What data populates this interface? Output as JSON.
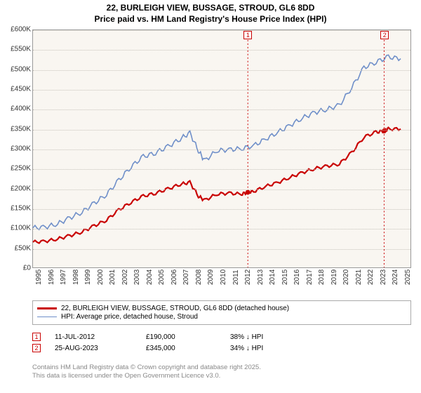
{
  "title_line1": "22, BURLEIGH VIEW, BUSSAGE, STROUD, GL6 8DD",
  "title_line2": "Price paid vs. HM Land Registry's House Price Index (HPI)",
  "chart": {
    "type": "line",
    "background_color": "#f9f6f1",
    "grid_color": "#c8c4bc",
    "xlim": [
      1995,
      2025.8
    ],
    "ylim": [
      0,
      600000
    ],
    "ytick_step": 50000,
    "yticks": [
      "£0",
      "£50K",
      "£100K",
      "£150K",
      "£200K",
      "£250K",
      "£300K",
      "£350K",
      "£400K",
      "£450K",
      "£500K",
      "£550K",
      "£600K"
    ],
    "xticks": [
      "1995",
      "1996",
      "1997",
      "1998",
      "1999",
      "2000",
      "2001",
      "2002",
      "2003",
      "2004",
      "2005",
      "2006",
      "2007",
      "2008",
      "2009",
      "2010",
      "2011",
      "2012",
      "2013",
      "2014",
      "2015",
      "2016",
      "2017",
      "2018",
      "2019",
      "2020",
      "2021",
      "2022",
      "2023",
      "2024",
      "2025"
    ],
    "series": [
      {
        "name": "price_paid",
        "color": "#c90000",
        "width": 2.2,
        "x": [
          1995,
          1996,
          1997,
          1998,
          1999,
          2000,
          2001,
          2002,
          2003,
          2004,
          2005,
          2006,
          2007,
          2007.8,
          2008.5,
          2009,
          2010,
          2011,
          2012,
          2012.5,
          2013,
          2014,
          2015,
          2016,
          2017,
          2018,
          2019,
          2020,
          2021,
          2022,
          2023,
          2023.65,
          2024,
          2025
        ],
        "y": [
          64000,
          66000,
          72000,
          80000,
          90000,
          105000,
          120000,
          145000,
          165000,
          180000,
          188000,
          198000,
          210000,
          215000,
          180000,
          170000,
          185000,
          188000,
          185000,
          190000,
          192000,
          205000,
          215000,
          228000,
          240000,
          250000,
          256000,
          262000,
          290000,
          330000,
          342000,
          345000,
          350000,
          350000
        ]
      },
      {
        "name": "hpi",
        "color": "#6f8fc9",
        "width": 1.6,
        "x": [
          1995,
          1996,
          1997,
          1998,
          1999,
          2000,
          2001,
          2002,
          2003,
          2004,
          2005,
          2006,
          2007,
          2007.8,
          2008.5,
          2009,
          2010,
          2011,
          2012,
          2013,
          2014,
          2015,
          2016,
          2017,
          2018,
          2019,
          2020,
          2021,
          2022,
          2023,
          2024,
          2025
        ],
        "y": [
          100000,
          102000,
          110000,
          125000,
          140000,
          162000,
          185000,
          220000,
          255000,
          280000,
          290000,
          305000,
          325000,
          340000,
          295000,
          270000,
          295000,
          298000,
          300000,
          308000,
          325000,
          342000,
          360000,
          378000,
          392000,
          400000,
          410000,
          455000,
          505000,
          520000,
          532000,
          528000
        ]
      }
    ],
    "markers": [
      {
        "label": "1",
        "x": 2012.53,
        "y_top": true
      },
      {
        "label": "2",
        "x": 2023.65,
        "y_top": true
      }
    ],
    "marker_lines": [
      {
        "x": 2012.53,
        "color": "#c90000"
      },
      {
        "x": 2023.65,
        "color": "#c90000"
      }
    ],
    "sale_points": [
      {
        "x": 2012.53,
        "y": 190000,
        "color": "#c90000"
      },
      {
        "x": 2023.65,
        "y": 345000,
        "color": "#c90000"
      }
    ]
  },
  "legend": [
    {
      "color": "#c90000",
      "width": 2.2,
      "label": "22, BURLEIGH VIEW, BUSSAGE, STROUD, GL6 8DD (detached house)"
    },
    {
      "color": "#6f8fc9",
      "width": 1.6,
      "label": "HPI: Average price, detached house, Stroud"
    }
  ],
  "events": [
    {
      "num": "1",
      "date": "11-JUL-2012",
      "price": "£190,000",
      "delta": "38% ↓ HPI"
    },
    {
      "num": "2",
      "date": "25-AUG-2023",
      "price": "£345,000",
      "delta": "34% ↓ HPI"
    }
  ],
  "footer_line1": "Contains HM Land Registry data © Crown copyright and database right 2025.",
  "footer_line2": "This data is licensed under the Open Government Licence v3.0."
}
